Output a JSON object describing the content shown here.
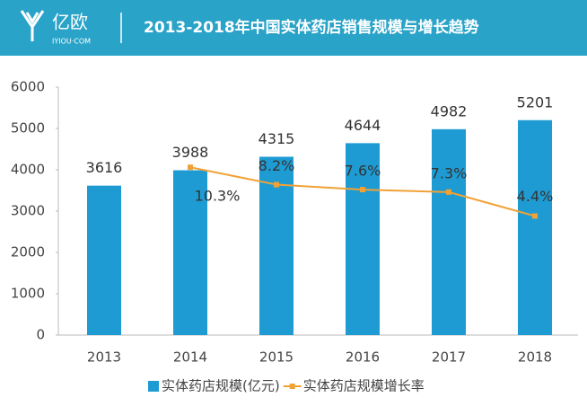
{
  "header": {
    "logo": "亿欧",
    "logo_sub": "IYIOU·COM"
  },
  "chart_data": {
    "type": "bar",
    "title": "2013-2018年中国实体药店销售规模与增长趋势",
    "categories": [
      "2013",
      "2014",
      "2015",
      "2016",
      "2017",
      "2018"
    ],
    "series": [
      {
        "name": "实体药店规模(亿元)",
        "color": "#1f9bd3",
        "type": "bar",
        "values": [
          3616,
          3988,
          4315,
          4644,
          4982,
          5201
        ]
      },
      {
        "name": "实体药店规模增长率",
        "color": "#f0a236",
        "type": "line",
        "axis": "y2",
        "values": [
          null,
          10.3,
          8.2,
          7.6,
          7.3,
          4.4
        ],
        "value_labels": [
          null,
          "10.3%",
          "8.2%",
          "7.6%",
          "7.3%",
          "4.4%"
        ]
      }
    ],
    "ylim": [
      0,
      6000
    ],
    "yticks": [
      0,
      1000,
      2000,
      3000,
      4000,
      5000,
      6000
    ],
    "y2lim": [
      -10,
      20
    ],
    "grid": false,
    "legend": "bottom"
  }
}
